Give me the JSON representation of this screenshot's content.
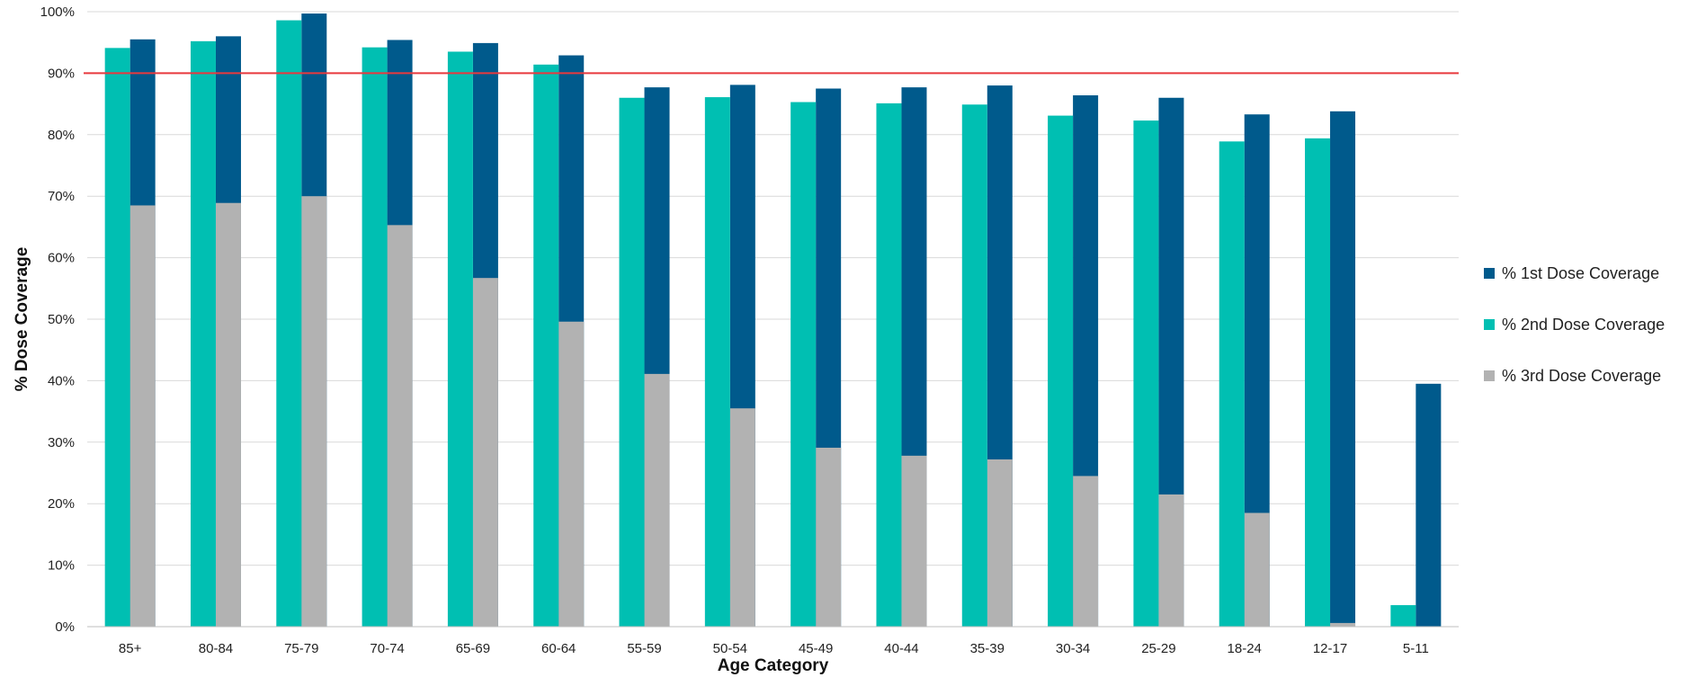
{
  "chart_data": {
    "type": "bar",
    "xlabel": "Age Category",
    "ylabel": "% Dose Coverage",
    "ylim": [
      0,
      100
    ],
    "yticks": [
      "0%",
      "10%",
      "20%",
      "30%",
      "40%",
      "50%",
      "60%",
      "70%",
      "80%",
      "90%",
      "100%"
    ],
    "grid": true,
    "legend_position": "right",
    "reference_line": {
      "value": 90,
      "color": "#e8393e"
    },
    "categories": [
      "85+",
      "80-84",
      "75-79",
      "70-74",
      "65-69",
      "60-64",
      "55-59",
      "50-54",
      "45-49",
      "40-44",
      "35-39",
      "30-34",
      "25-29",
      "18-24",
      "12-17",
      "5-11"
    ],
    "series": [
      {
        "name": "% 1st Dose Coverage",
        "color": "#005a8c",
        "values": [
          95.5,
          96.0,
          99.7,
          95.4,
          94.9,
          92.9,
          87.7,
          88.1,
          87.5,
          87.7,
          88.0,
          86.4,
          86.0,
          83.3,
          83.8,
          39.5
        ]
      },
      {
        "name": "% 2nd Dose Coverage",
        "color": "#00bfb2",
        "values": [
          94.1,
          95.2,
          98.6,
          94.2,
          93.5,
          91.4,
          86.0,
          86.1,
          85.3,
          85.1,
          84.9,
          83.1,
          82.3,
          78.9,
          79.4,
          3.5
        ]
      },
      {
        "name": "% 3rd Dose Coverage",
        "color": "#b2b2b2",
        "values": [
          68.5,
          68.9,
          70.0,
          65.3,
          56.7,
          49.6,
          41.1,
          35.5,
          29.1,
          27.8,
          27.2,
          24.5,
          21.5,
          18.5,
          0.6,
          0
        ]
      }
    ]
  }
}
